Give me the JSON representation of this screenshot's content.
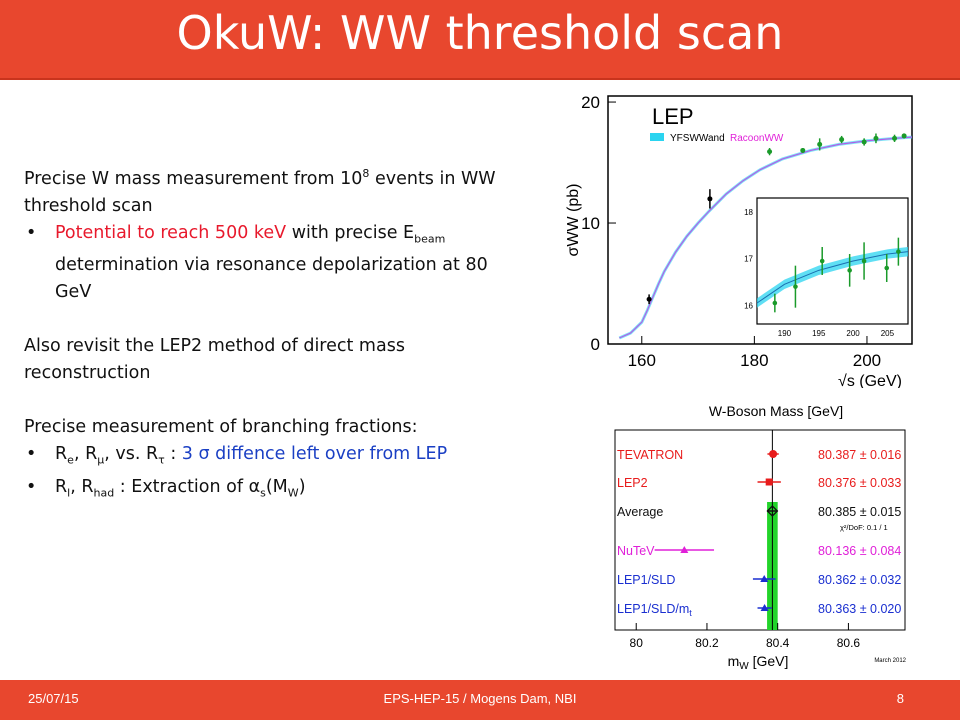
{
  "slide": {
    "title": "OkuW: WW threshold scan",
    "footer": {
      "date": "25/07/15",
      "center": "EPS-HEP-15 / Mogens Dam, NBI",
      "page": "8"
    },
    "bullet_char": "•",
    "text": {
      "p1_a": "Precise W mass measurement from 10",
      "p1_sup": "8",
      "p1_b": " events in WW threshold scan",
      "b1_red": "Potential to reach 500 keV",
      "b1_a": " with precise E",
      "b1_sub": "beam",
      "b1_b": " determination via resonance depolarization at 80 GeV",
      "p2": "Also revisit the LEP2 method of direct mass reconstruction",
      "p3": "Precise measurement of branching fractions:",
      "b2_R1": "R",
      "b2_sub1": "e",
      "b2_sep1": ", R",
      "b2_sub2": "μ",
      "b2_sep2": ", vs. R",
      "b2_sub3": "τ",
      "b2_colon": " : ",
      "b2_blue": "3 σ diffence left over from LEP",
      "b3_R1": "R",
      "b3_sub1": "l",
      "b3_sep1": ", R",
      "b3_sub2": "had",
      "b3_a": " : Extraction of α",
      "b3_sub3": "s",
      "b3_b": "(M",
      "b3_sub4": "W",
      "b3_c": ")"
    }
  },
  "colors": {
    "accent": "#e8472e",
    "red_text": "#e8192c",
    "blue_text": "#1a3fc4"
  },
  "chart_data": [
    {
      "type": "line",
      "title": "LEP",
      "ylabel": "σWW (pb)",
      "xlabel": "√s (GeV)",
      "xlim": [
        154,
        208
      ],
      "ylim": [
        0,
        20.5
      ],
      "xticks": [
        160,
        180,
        200
      ],
      "yticks": [
        0,
        10,
        20
      ],
      "legend": {
        "label_a": "YFSWW",
        "label_and": "and",
        "label_b": "RacoonWW",
        "position": "top-left"
      },
      "curve_x": [
        156,
        158,
        160,
        161,
        162,
        163,
        164,
        166,
        168,
        170,
        172,
        175,
        178,
        181,
        185,
        190,
        195,
        200,
        205,
        208
      ],
      "curve_y": [
        0.5,
        0.9,
        1.8,
        2.8,
        3.9,
        5.0,
        6.0,
        7.6,
        8.9,
        10.0,
        11.0,
        12.4,
        13.5,
        14.4,
        15.3,
        16.0,
        16.5,
        16.8,
        17.0,
        17.1
      ],
      "points": [
        {
          "x": 161.3,
          "y": 3.7,
          "err": 0.4,
          "color": "#000000"
        },
        {
          "x": 172.1,
          "y": 12.0,
          "err": 0.8,
          "color": "#000000"
        },
        {
          "x": 182.7,
          "y": 15.9,
          "err": 0.3,
          "color": "#1a9a2a"
        },
        {
          "x": 188.6,
          "y": 16.0,
          "err": 0.2,
          "color": "#1a9a2a"
        },
        {
          "x": 191.6,
          "y": 16.5,
          "err": 0.5,
          "color": "#1a9a2a"
        },
        {
          "x": 195.5,
          "y": 16.9,
          "err": 0.3,
          "color": "#1a9a2a"
        },
        {
          "x": 199.5,
          "y": 16.7,
          "err": 0.3,
          "color": "#1a9a2a"
        },
        {
          "x": 201.6,
          "y": 17.0,
          "err": 0.4,
          "color": "#1a9a2a"
        },
        {
          "x": 204.9,
          "y": 17.0,
          "err": 0.3,
          "color": "#1a9a2a"
        },
        {
          "x": 206.6,
          "y": 17.2,
          "err": 0.2,
          "color": "#1a9a2a"
        }
      ],
      "inset": {
        "xlim": [
          186,
          208
        ],
        "ylim": [
          15.6,
          18.3
        ],
        "xticks": [
          190,
          195,
          200,
          205
        ],
        "yticks": [
          16,
          17,
          18
        ],
        "band_x": [
          186,
          190,
          195,
          200,
          205,
          208
        ],
        "band_y": [
          16.05,
          16.45,
          16.75,
          16.95,
          17.1,
          17.15
        ],
        "band_halfwidth": 0.1,
        "points": [
          {
            "x": 188.6,
            "y": 16.05,
            "err": 0.2
          },
          {
            "x": 191.6,
            "y": 16.4,
            "err": 0.45
          },
          {
            "x": 195.5,
            "y": 16.95,
            "err": 0.3
          },
          {
            "x": 199.5,
            "y": 16.75,
            "err": 0.35
          },
          {
            "x": 201.6,
            "y": 16.95,
            "err": 0.4
          },
          {
            "x": 204.9,
            "y": 16.8,
            "err": 0.3
          },
          {
            "x": 206.6,
            "y": 17.15,
            "err": 0.3
          }
        ]
      }
    },
    {
      "type": "scatter",
      "title": "W-Boson Mass [GeV]",
      "xlabel_main": "m",
      "xlabel_sub": "W",
      "xlabel_unit": "[GeV]",
      "xlim": [
        79.94,
        80.76
      ],
      "xticks": [
        80,
        80.2,
        80.4,
        80.6
      ],
      "band": {
        "center": 80.385,
        "halfwidth": 0.015,
        "color": "#22d42a"
      },
      "note": "March 2012",
      "chi2": "χ²/DoF: 0.1 / 1",
      "rows": [
        {
          "name": "TEVATRON",
          "sub": "",
          "value": 80.387,
          "err": 0.016,
          "label": "80.387 ± 0.016",
          "color": "#e81c1c",
          "marker": "star"
        },
        {
          "name": "LEP2",
          "sub": "",
          "value": 80.376,
          "err": 0.033,
          "label": "80.376 ± 0.033",
          "color": "#e81c1c",
          "marker": "square"
        },
        {
          "name": "Average",
          "sub": "",
          "value": 80.385,
          "err": 0.015,
          "label": "80.385 ± 0.015",
          "color": "#111111",
          "marker": "diamond"
        },
        {
          "name": "NuTeV",
          "sub": "",
          "value": 80.136,
          "err": 0.084,
          "label": "80.136 ± 0.084",
          "color": "#e020d8",
          "marker": "triangle"
        },
        {
          "name": "LEP1/SLD",
          "sub": "",
          "value": 80.362,
          "err": 0.032,
          "label": "80.362 ± 0.032",
          "color": "#1a2fd0",
          "marker": "triangle"
        },
        {
          "name": "LEP1/SLD/m",
          "sub": "t",
          "value": 80.363,
          "err": 0.02,
          "label": "80.363 ± 0.020",
          "color": "#1a2fd0",
          "marker": "triangle"
        }
      ]
    }
  ]
}
